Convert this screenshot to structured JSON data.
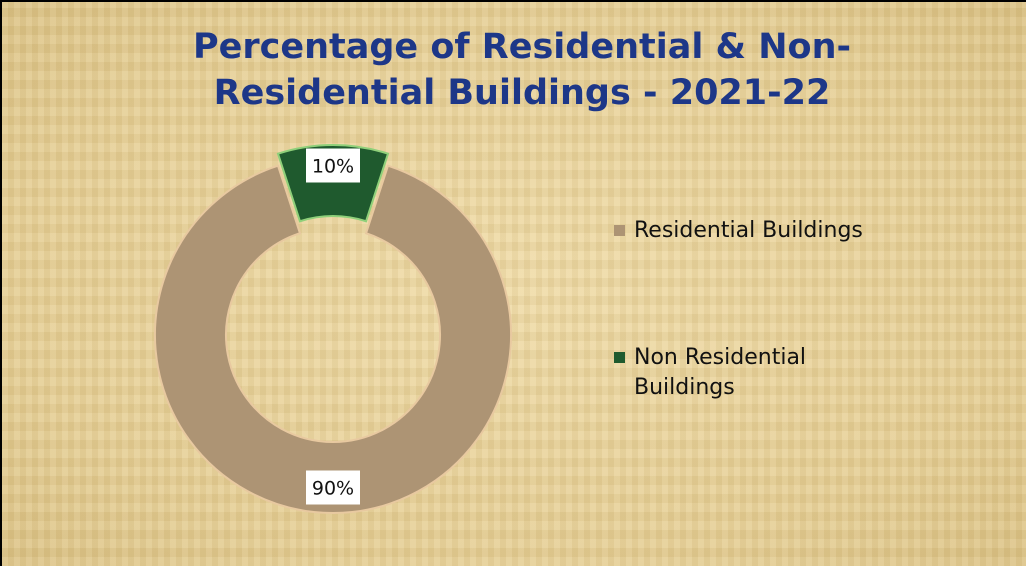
{
  "chart_data": {
    "type": "doughnut",
    "title": "Percentage of Residential & Non-Residential Buildings - 2021-22",
    "categories": [
      "Residential Buildings",
      "Non Residential Buildings"
    ],
    "values": [
      90,
      10
    ],
    "value_labels": [
      "90%",
      "10%"
    ],
    "colors": [
      "#ad9474",
      "#1f5a2e"
    ],
    "legend": "right"
  }
}
